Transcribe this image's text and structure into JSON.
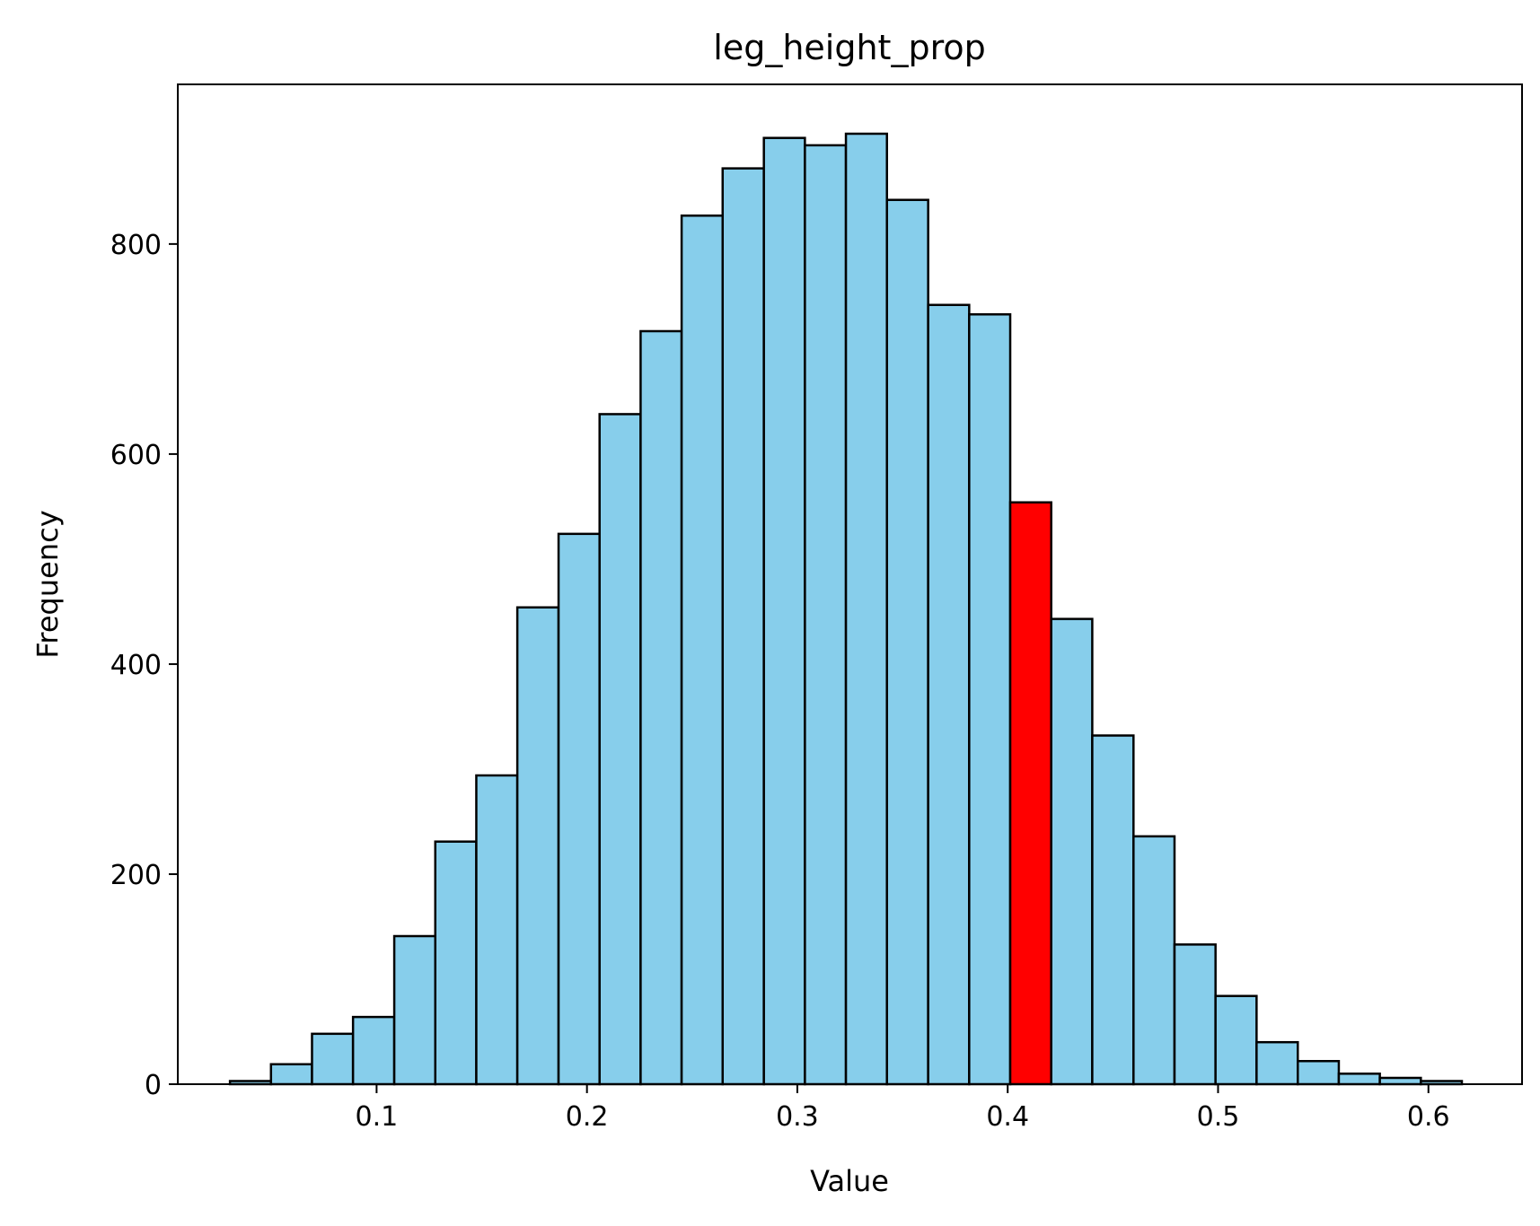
{
  "chart_data": {
    "type": "bar",
    "title": "leg_height_prop",
    "xlabel": "Value",
    "ylabel": "Frequency",
    "xlim": [
      0.0055,
      0.6445
    ],
    "ylim": [
      0,
      952
    ],
    "x_ticks": [
      0.1,
      0.2,
      0.3,
      0.4,
      0.5,
      0.6
    ],
    "x_tick_labels": [
      "0.1",
      "0.2",
      "0.3",
      "0.4",
      "0.5",
      "0.6"
    ],
    "y_ticks": [
      0,
      200,
      400,
      600,
      800
    ],
    "y_tick_labels": [
      "0",
      "200",
      "400",
      "600",
      "800"
    ],
    "grid": false,
    "bin_edges": [
      0.0303,
      0.0498,
      0.0693,
      0.0888,
      0.1084,
      0.1279,
      0.1474,
      0.1669,
      0.1865,
      0.206,
      0.2255,
      0.245,
      0.2645,
      0.2841,
      0.3036,
      0.3231,
      0.3426,
      0.3622,
      0.3817,
      0.4012,
      0.4207,
      0.4402,
      0.4598,
      0.4793,
      0.4988,
      0.5183,
      0.5379,
      0.5574,
      0.5769,
      0.5964,
      0.6159
    ],
    "values": [
      3,
      19,
      48,
      64,
      141,
      231,
      294,
      454,
      524,
      638,
      717,
      827,
      872,
      901,
      894,
      905,
      842,
      742,
      733,
      554,
      443,
      332,
      236,
      133,
      84,
      40,
      22,
      10,
      6,
      3
    ],
    "highlighted_bin": 19,
    "colors": {
      "bar": "#87ceeb",
      "highlight": "#ff0000",
      "edge": "#000000"
    }
  }
}
